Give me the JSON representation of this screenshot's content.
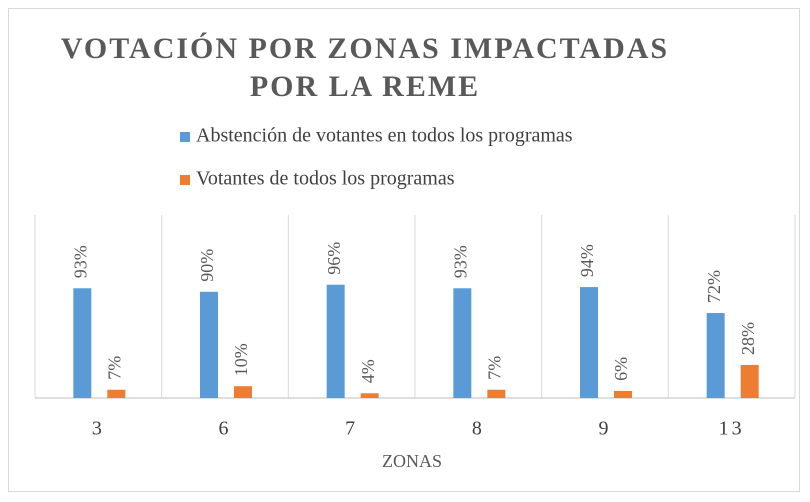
{
  "chart_data": {
    "type": "bar",
    "title": "VOTACIÓN POR ZONAS IMPACTADAS POR LA REME",
    "x_label": "ZONAS",
    "categories": [
      "3",
      "6",
      "7",
      "8",
      "9",
      "13"
    ],
    "series": [
      {
        "name": "Abstención de votantes en todos los programas",
        "color": "#5b9bd5",
        "values": [
          93,
          90,
          96,
          93,
          94,
          72
        ],
        "value_labels": [
          "93%",
          "90%",
          "96%",
          "93%",
          "94%",
          "72%"
        ]
      },
      {
        "name": "Votantes de todos los programas",
        "color": "#ed7d31",
        "values": [
          7,
          10,
          4,
          7,
          6,
          28
        ],
        "value_labels": [
          "7%",
          "10%",
          "4%",
          "7%",
          "6%",
          "28%"
        ]
      }
    ],
    "legend": "top"
  }
}
